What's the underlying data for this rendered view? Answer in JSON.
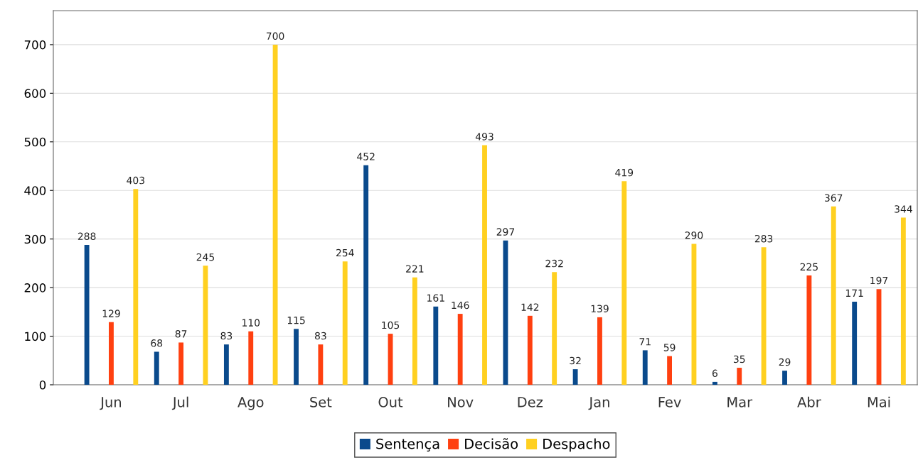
{
  "chart_data": {
    "type": "bar",
    "categories": [
      "Jun",
      "Jul",
      "Ago",
      "Set",
      "Out",
      "Nov",
      "Dez",
      "Jan",
      "Fev",
      "Mar",
      "Abr",
      "Mai"
    ],
    "series": [
      {
        "name": "Sentença",
        "color": "#0a4a8c",
        "values": [
          288,
          68,
          83,
          115,
          452,
          161,
          297,
          32,
          71,
          6,
          29,
          171
        ]
      },
      {
        "name": "Decisão",
        "color": "#ff4010",
        "values": [
          129,
          87,
          110,
          83,
          105,
          146,
          142,
          139,
          59,
          35,
          225,
          197
        ]
      },
      {
        "name": "Despacho",
        "color": "#ffd020",
        "values": [
          403,
          245,
          700,
          254,
          221,
          493,
          232,
          419,
          290,
          283,
          367,
          344
        ]
      }
    ],
    "ylim": [
      0,
      770
    ],
    "yticks": [
      0,
      100,
      200,
      300,
      400,
      500,
      600,
      700
    ],
    "grid": "y",
    "legend": "bottom",
    "data_labels": true
  }
}
